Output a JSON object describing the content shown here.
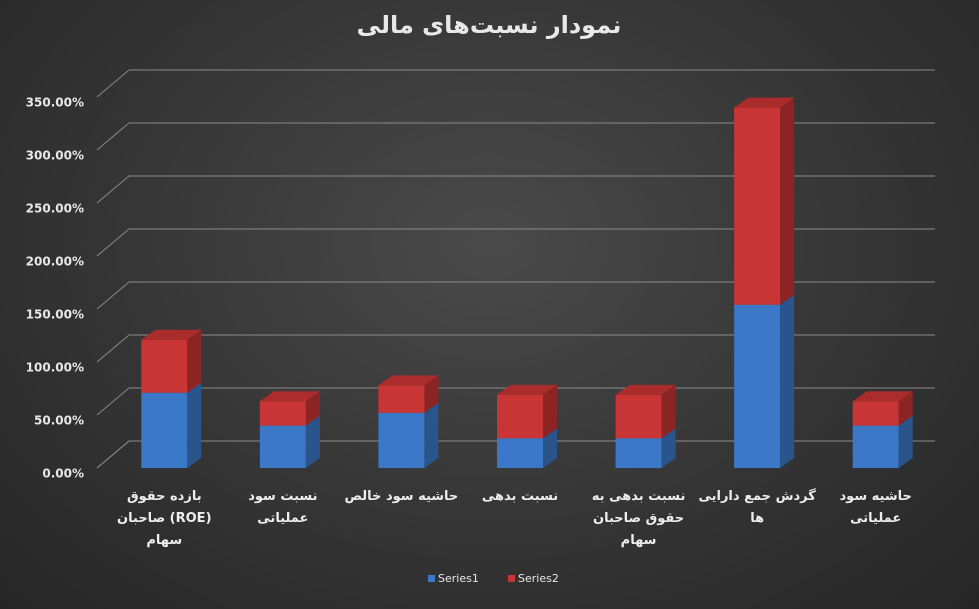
{
  "chart_data": {
    "type": "bar3d_stacked",
    "title": "نمودار نسبت‌های مالی",
    "categories": [
      "بازده حقوق (ROE) صاحبان سهام",
      "نسبت سود عملیاتی",
      "حاشیه سود خالص",
      "نسبت بدهی",
      "نسبت بدهی به حقوق صاحبان سهام",
      "گردش جمع دارایی ها",
      "حاشیه  سود عملیاتی"
    ],
    "series": [
      {
        "name": "Series1",
        "color": "#3b78c8",
        "values": [
          71,
          40,
          52,
          28,
          28,
          154,
          40
        ]
      },
      {
        "name": "Series2",
        "color": "#c93434",
        "values": [
          50,
          23,
          26,
          41,
          41,
          186,
          23
        ]
      }
    ],
    "ylim": [
      0,
      350
    ],
    "yticks": [
      {
        "value": 0,
        "label": "0.00%"
      },
      {
        "value": 50,
        "label": "50.00%"
      },
      {
        "value": 100,
        "label": "100.00%"
      },
      {
        "value": 150,
        "label": "150.00%"
      },
      {
        "value": 200,
        "label": "200.00%"
      },
      {
        "value": 250,
        "label": "250.00%"
      },
      {
        "value": 300,
        "label": "300.00%"
      },
      {
        "value": 350,
        "label": "350.00%"
      }
    ],
    "grid": true,
    "legend": "bottom"
  }
}
